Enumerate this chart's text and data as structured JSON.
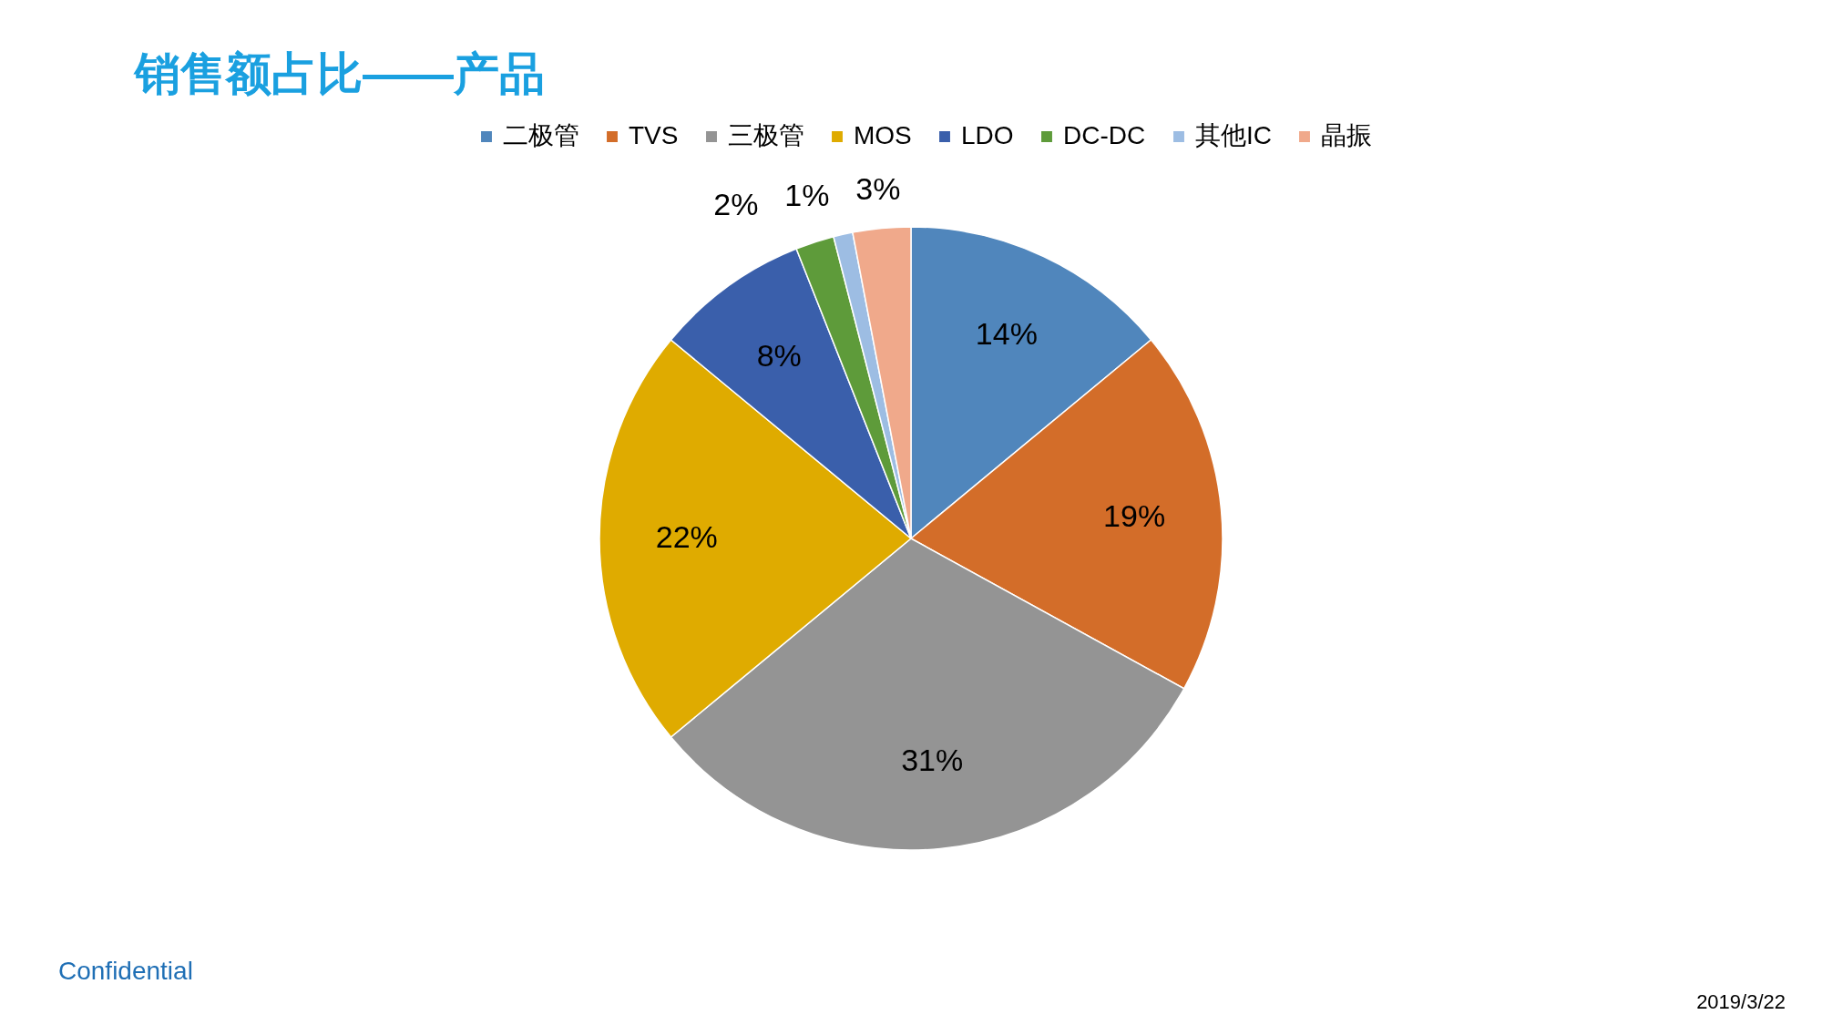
{
  "chart_data": {
    "type": "pie",
    "title": "销售额占比——产品",
    "categories": [
      "二极管",
      "TVS",
      "三极管",
      "MOS",
      "LDO",
      "DC-DC",
      "其他IC",
      "晶振"
    ],
    "values": [
      14,
      19,
      31,
      22,
      8,
      2,
      1,
      3
    ],
    "value_labels": [
      "14%",
      "19%",
      "31%",
      "22%",
      "8%",
      "2%",
      "1%",
      "3%"
    ],
    "colors": [
      "#5086bc",
      "#d36d29",
      "#949494",
      "#dfab00",
      "#3a5fab",
      "#5e9b3a",
      "#9dbde3",
      "#f0a98b"
    ],
    "legend": "top",
    "annotations": [
      "Confidential",
      "2019/3/22"
    ]
  }
}
